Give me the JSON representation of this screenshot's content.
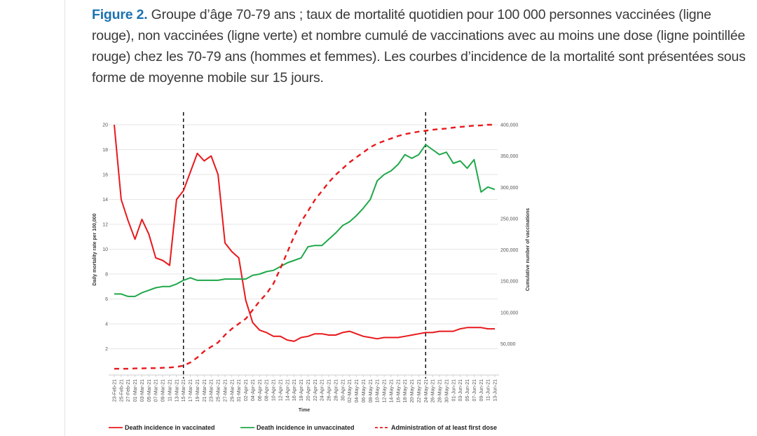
{
  "caption": {
    "label": "Figure 2.",
    "text": " Groupe d’âge 70-79 ans ; taux de mortalité quotidien pour 100 000 personnes vaccinées (ligne rouge), non vaccinées (ligne verte) et nombre cumulé de vaccinations avec au moins une dose (ligne pointillée rouge) chez les 70-79 ans (hommes et femmes). Les courbes d’incidence de la mortalité sont présentées sous forme de moyenne mobile sur 15 jours."
  },
  "chart_data": {
    "type": "line",
    "xlabel": "Time",
    "ylabel": "Daily mortality rate per 100,000",
    "y2label": "Cumulative number of vaccinations",
    "ylim": [
      0,
      20
    ],
    "y2lim": [
      0,
      400000
    ],
    "yticks": [
      "2",
      "4",
      "6",
      "8",
      "10",
      "12",
      "14",
      "16",
      "18",
      "20"
    ],
    "y2ticks": [
      "50,000",
      "100,000",
      "150,000",
      "200,000",
      "250,000",
      "300,000",
      "350,000",
      "400,000"
    ],
    "grid": true,
    "legend_position": "bottom",
    "vertical_markers": [
      "15-Mar-21",
      "24-May-21"
    ],
    "categories": [
      "23-Feb-21",
      "25-Feb-21",
      "27-Feb-21",
      "01-Mar-21",
      "03-Mar-21",
      "05-Mar-21",
      "07-Mar-21",
      "09-Mar-21",
      "11-Mar-21",
      "13-Mar-21",
      "15-Mar-21",
      "17-Mar-21",
      "19-Mar-21",
      "21-Mar-21",
      "23-Mar-21",
      "25-Mar-21",
      "27-Mar-21",
      "29-Mar-21",
      "31-Mar-21",
      "02-Apr-21",
      "04-Apr-21",
      "06-Apr-21",
      "08-Apr-21",
      "10-Apr-21",
      "12-Apr-21",
      "14-Apr-21",
      "16-Apr-21",
      "18-Apr-21",
      "20-Apr-21",
      "22-Apr-21",
      "24-Apr-21",
      "26-Apr-21",
      "28-Apr-21",
      "30-Apr-21",
      "02-May-21",
      "04-May-21",
      "06-May-21",
      "08-May-21",
      "10-May-21",
      "12-May-21",
      "14-May-21",
      "16-May-21",
      "18-May-21",
      "20-May-21",
      "22-May-21",
      "24-May-21",
      "26-May-21",
      "28-May-21",
      "30-May-21",
      "01-Jun-21",
      "03-Jun-21",
      "05-Jun-21",
      "07-Jun-21",
      "09-Jun-21",
      "11-Jun-21",
      "13-Jun-21"
    ],
    "series": [
      {
        "name": "Death incidence in vaccinated",
        "axis": "left",
        "color": "#e8191c",
        "dash": false,
        "values": [
          20,
          14,
          12.3,
          10.8,
          12.4,
          11.2,
          9.3,
          9.1,
          8.7,
          14.0,
          14.7,
          16.2,
          17.7,
          17.1,
          17.5,
          16.0,
          10.5,
          9.8,
          9.3,
          5.9,
          4.1,
          3.5,
          3.3,
          3.0,
          3.0,
          2.7,
          2.6,
          2.9,
          3.0,
          3.2,
          3.2,
          3.1,
          3.1,
          3.3,
          3.4,
          3.2,
          3.0,
          2.9,
          2.8,
          2.9,
          2.9,
          2.9,
          3.0,
          3.1,
          3.2,
          3.3,
          3.3,
          3.4,
          3.4,
          3.4,
          3.6,
          3.7,
          3.7,
          3.7,
          3.6,
          3.6
        ]
      },
      {
        "name": "Death incidence in unvaccinated",
        "axis": "left",
        "color": "#1fa84a",
        "dash": false,
        "values": [
          6.4,
          6.4,
          6.2,
          6.2,
          6.5,
          6.7,
          6.9,
          7.0,
          7.0,
          7.2,
          7.5,
          7.7,
          7.5,
          7.5,
          7.5,
          7.5,
          7.6,
          7.6,
          7.6,
          7.6,
          7.9,
          8.0,
          8.2,
          8.3,
          8.6,
          8.9,
          9.1,
          9.3,
          10.2,
          10.3,
          10.3,
          10.8,
          11.3,
          11.9,
          12.2,
          12.7,
          13.3,
          14.0,
          15.5,
          16.0,
          16.3,
          16.8,
          17.6,
          17.3,
          17.6,
          18.4,
          18.0,
          17.6,
          17.8,
          16.9,
          17.1,
          16.5,
          17.2,
          14.6,
          15.0,
          14.8
        ]
      },
      {
        "name": "Administration of at least first dose",
        "axis": "right",
        "color": "#e8191c",
        "dash": true,
        "values": [
          10000,
          10000,
          10000,
          10500,
          10500,
          11000,
          11000,
          11500,
          12000,
          13000,
          15000,
          20000,
          28000,
          38000,
          45000,
          52000,
          64000,
          74000,
          82000,
          90000,
          104000,
          118000,
          130000,
          146000,
          170000,
          196000,
          222000,
          245000,
          262000,
          280000,
          294000,
          308000,
          320000,
          330000,
          340000,
          348000,
          356000,
          364000,
          370000,
          374000,
          378000,
          382000,
          385000,
          387000,
          389000,
          390500,
          392000,
          393000,
          394000,
          395500,
          396500,
          397500,
          398500,
          399000,
          400000,
          400000
        ]
      }
    ]
  }
}
